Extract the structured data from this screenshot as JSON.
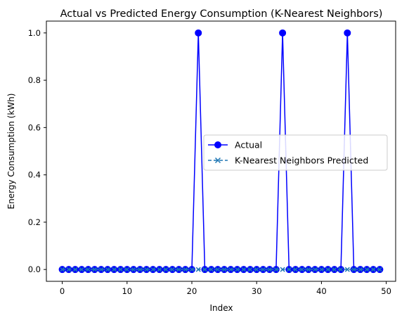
{
  "chart_data": {
    "type": "line",
    "title": "Actual vs Predicted Energy Consumption (K-Nearest Neighbors)",
    "xlabel": "Index",
    "ylabel": "Energy Consumption (kWh)",
    "xlim": [
      -2.45,
      51.45
    ],
    "ylim": [
      -0.05,
      1.05
    ],
    "xticks": [
      0,
      10,
      20,
      30,
      40,
      50
    ],
    "yticks": [
      0.0,
      0.2,
      0.4,
      0.6,
      0.8,
      1.0
    ],
    "xtick_labels": [
      "0",
      "10",
      "20",
      "30",
      "40",
      "50"
    ],
    "ytick_labels": [
      "0.0",
      "0.2",
      "0.4",
      "0.6",
      "0.8",
      "1.0"
    ],
    "legend_position": "center-right",
    "series": [
      {
        "name": "Actual",
        "color": "#0000ff",
        "marker": "circle",
        "linestyle": "solid",
        "x": [
          0,
          1,
          2,
          3,
          4,
          5,
          6,
          7,
          8,
          9,
          10,
          11,
          12,
          13,
          14,
          15,
          16,
          17,
          18,
          19,
          20,
          21,
          22,
          23,
          24,
          25,
          26,
          27,
          28,
          29,
          30,
          31,
          32,
          33,
          34,
          35,
          36,
          37,
          38,
          39,
          40,
          41,
          42,
          43,
          44,
          45,
          46,
          47,
          48,
          49
        ],
        "values": [
          0,
          0,
          0,
          0,
          0,
          0,
          0,
          0,
          0,
          0,
          0,
          0,
          0,
          0,
          0,
          0,
          0,
          0,
          0,
          0,
          0,
          1,
          0,
          0,
          0,
          0,
          0,
          0,
          0,
          0,
          0,
          0,
          0,
          0,
          1,
          0,
          0,
          0,
          0,
          0,
          0,
          0,
          0,
          0,
          1,
          0,
          0,
          0,
          0,
          0
        ]
      },
      {
        "name": "K-Nearest Neighbors Predicted",
        "color": "#1f77b4",
        "marker": "x",
        "linestyle": "dashed",
        "x": [
          0,
          1,
          2,
          3,
          4,
          5,
          6,
          7,
          8,
          9,
          10,
          11,
          12,
          13,
          14,
          15,
          16,
          17,
          18,
          19,
          20,
          21,
          22,
          23,
          24,
          25,
          26,
          27,
          28,
          29,
          30,
          31,
          32,
          33,
          34,
          35,
          36,
          37,
          38,
          39,
          40,
          41,
          42,
          43,
          44,
          45,
          46,
          47,
          48,
          49
        ],
        "values": [
          0,
          0,
          0,
          0,
          0,
          0,
          0,
          0,
          0,
          0,
          0,
          0,
          0,
          0,
          0,
          0,
          0,
          0,
          0,
          0,
          0,
          0,
          0,
          0,
          0,
          0,
          0,
          0,
          0,
          0,
          0,
          0,
          0,
          0,
          0,
          0,
          0,
          0,
          0,
          0,
          0,
          0,
          0,
          0,
          0,
          0,
          0,
          0,
          0,
          0
        ]
      }
    ]
  }
}
